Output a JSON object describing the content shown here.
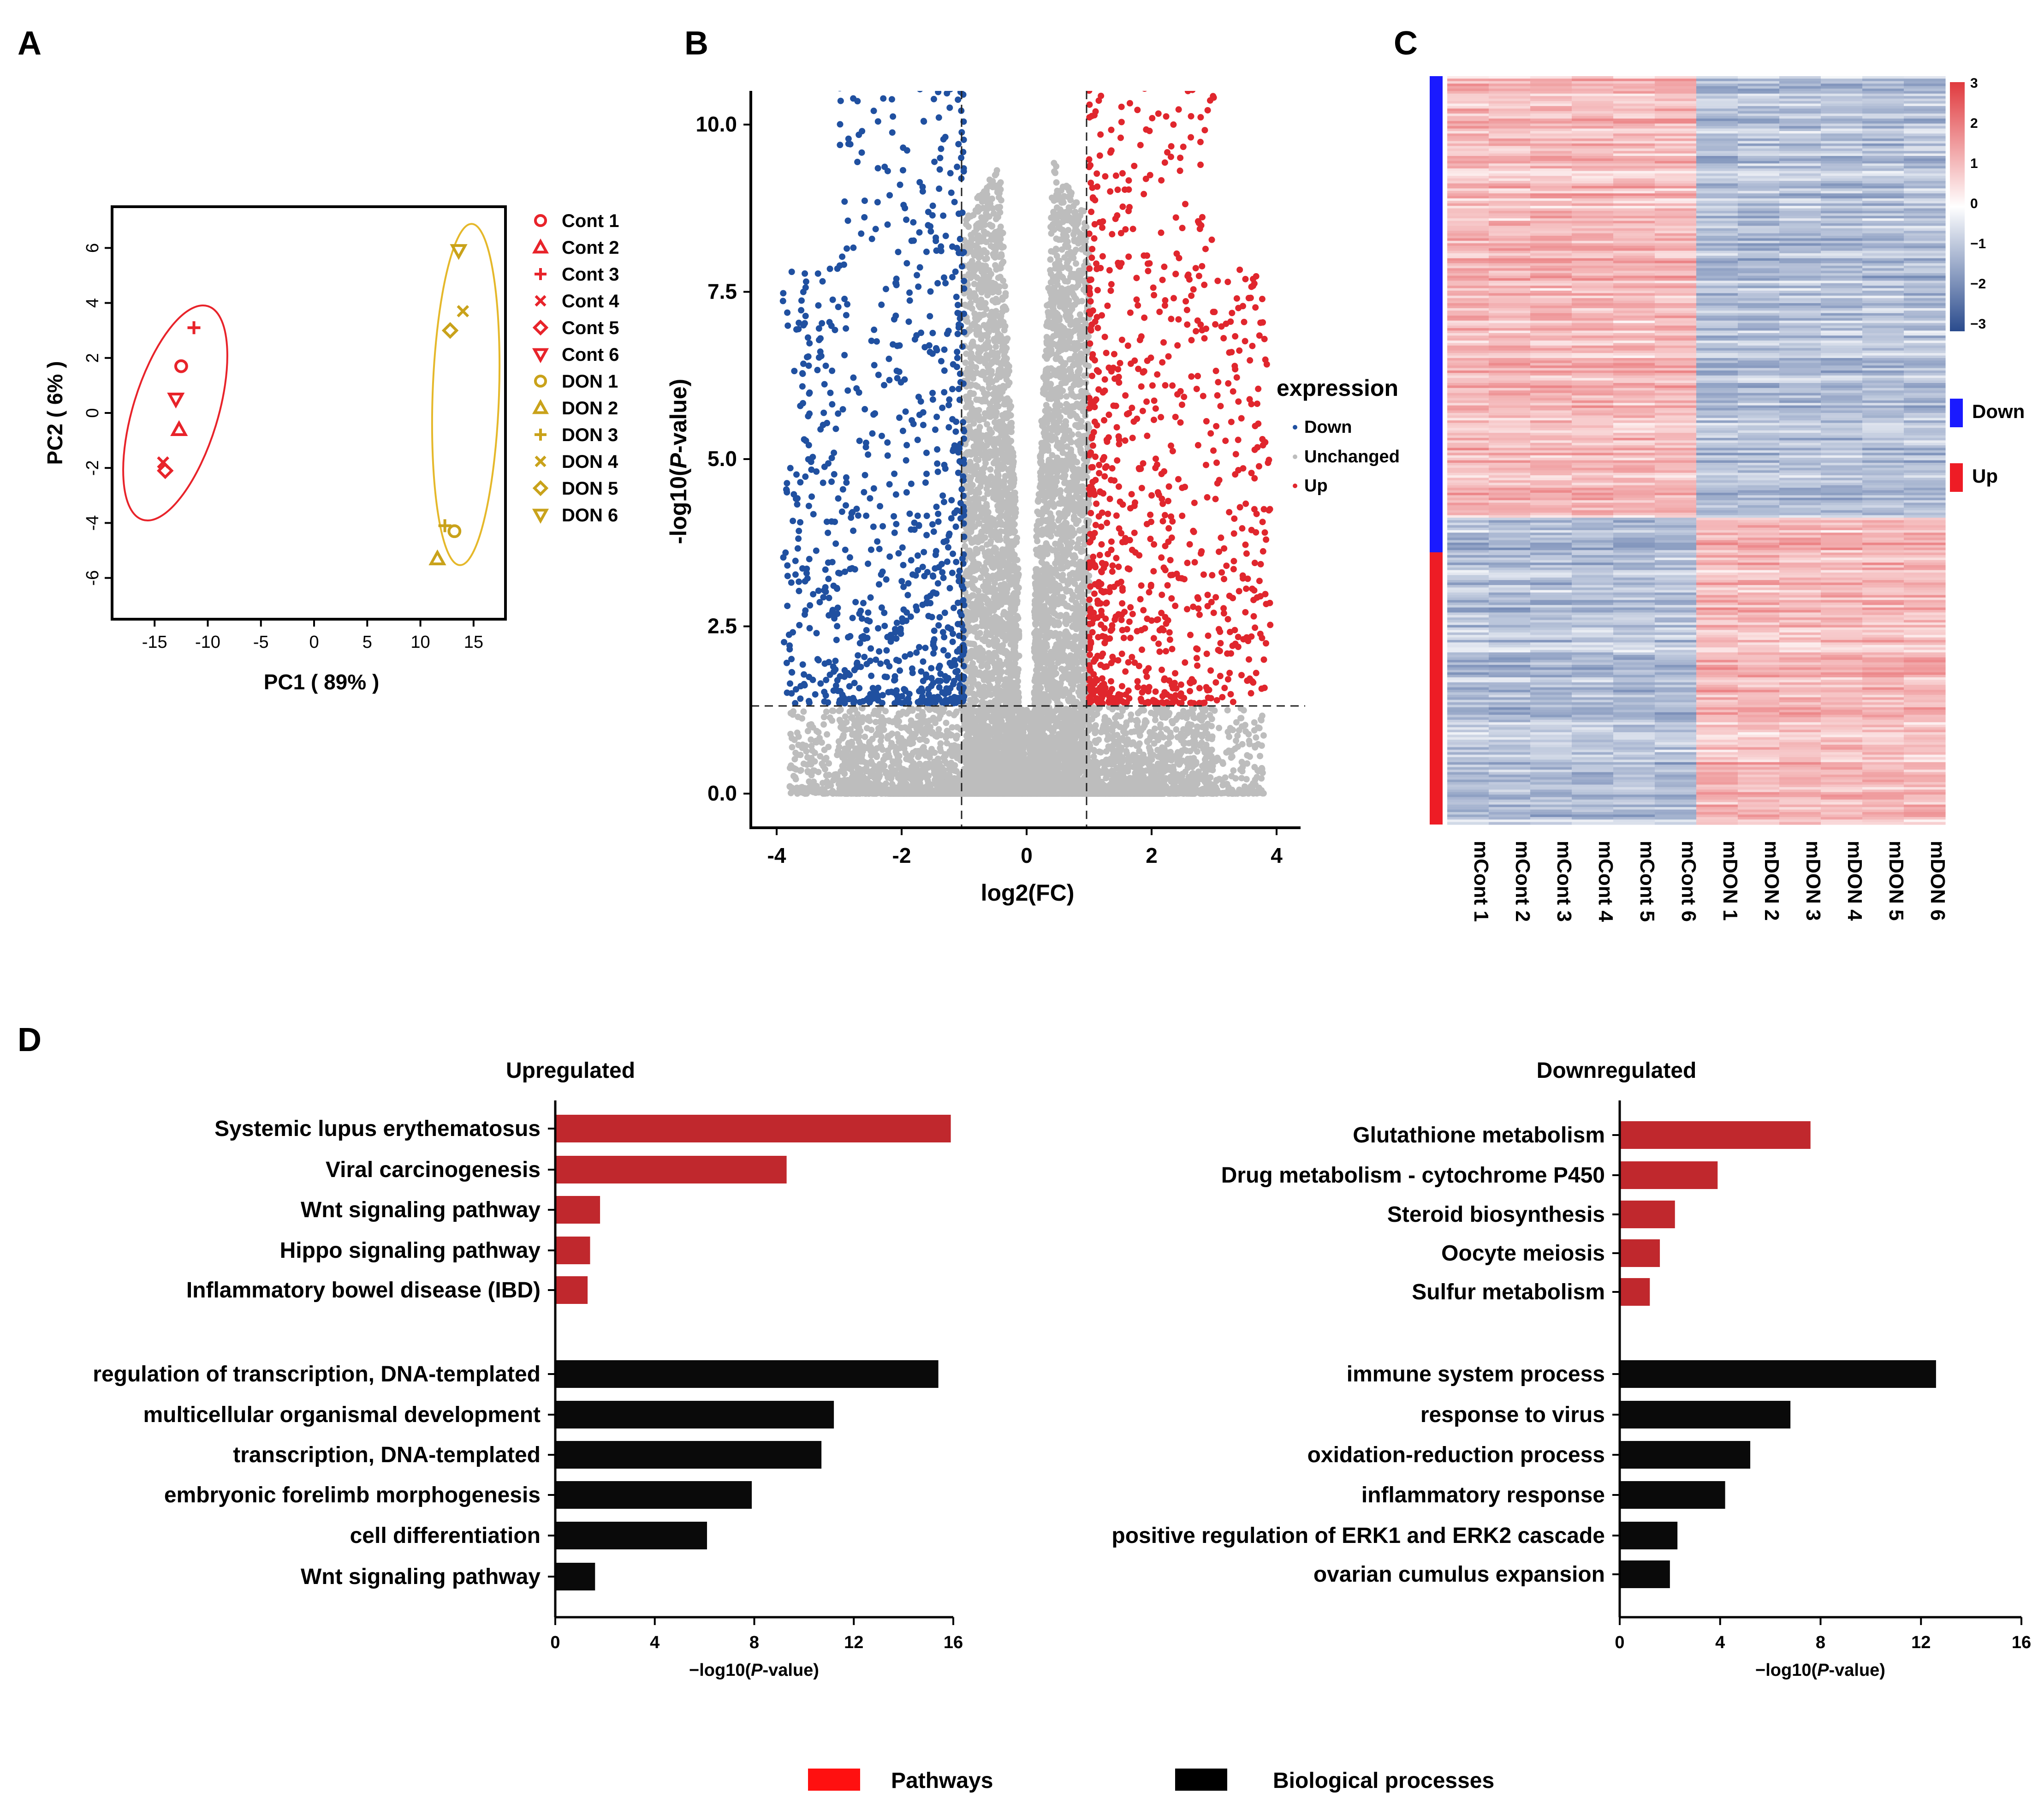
{
  "panels": {
    "a": "A",
    "b": "B",
    "c": "C",
    "d": "D"
  },
  "colors": {
    "cont": "#e8232a",
    "don": "#c9a21a",
    "down": "#2050a0",
    "up": "#e0262d",
    "unchanged": "#bdbdbd",
    "pathway": "#c0282d",
    "process": "#0a0a0a",
    "down_bar": "#1a1aff",
    "up_bar": "#ee1c25",
    "heat_red": "#e03a3e",
    "heat_blue": "#2a4b8d"
  },
  "legend_bottom": {
    "pathways": "Pathways",
    "processes": "Biological processes"
  },
  "chart_data": [
    {
      "type": "scatter",
      "id": "pca",
      "xlabel": "PC1 ( 89% )",
      "ylabel": "PC2 ( 6% )",
      "xlim": [
        -19,
        18
      ],
      "ylim": [
        -7.5,
        7.5
      ],
      "xticks": [
        -15,
        -10,
        -5,
        0,
        5,
        10,
        15
      ],
      "yticks": [
        -6,
        -4,
        -2,
        0,
        2,
        4,
        6
      ],
      "series": [
        {
          "name": "Cont 1",
          "group": "cont",
          "marker": "circle",
          "x": -12.5,
          "y": 1.7
        },
        {
          "name": "Cont 2",
          "group": "cont",
          "marker": "triangle",
          "x": -12.7,
          "y": -0.6
        },
        {
          "name": "Cont 3",
          "group": "cont",
          "marker": "plus",
          "x": -11.3,
          "y": 3.1
        },
        {
          "name": "Cont 4",
          "group": "cont",
          "marker": "x",
          "x": -14.2,
          "y": -1.8
        },
        {
          "name": "Cont 5",
          "group": "cont",
          "marker": "diamond",
          "x": -14.0,
          "y": -2.1
        },
        {
          "name": "Cont 6",
          "group": "cont",
          "marker": "tri-down",
          "x": -13.0,
          "y": 0.5
        },
        {
          "name": "DON 1",
          "group": "don",
          "marker": "circle",
          "x": 13.2,
          "y": -4.3
        },
        {
          "name": "DON 2",
          "group": "don",
          "marker": "triangle",
          "x": 11.6,
          "y": -5.3
        },
        {
          "name": "DON 3",
          "group": "don",
          "marker": "plus",
          "x": 12.3,
          "y": -4.1
        },
        {
          "name": "DON 4",
          "group": "don",
          "marker": "x",
          "x": 14.0,
          "y": 3.7
        },
        {
          "name": "DON 5",
          "group": "don",
          "marker": "diamond",
          "x": 12.8,
          "y": 3.0
        },
        {
          "name": "DON 6",
          "group": "don",
          "marker": "tri-down",
          "x": 13.6,
          "y": 5.9
        }
      ]
    },
    {
      "type": "scatter",
      "id": "volcano",
      "xlabel": "log2(FC)",
      "ylabel": "-log10(P-value)",
      "xlim": [
        -4.4,
        4.4
      ],
      "ylim": [
        -0.4,
        10.5
      ],
      "xticks": [
        -4,
        -2,
        0,
        2,
        4
      ],
      "yticks": [
        "0.0",
        "2.5",
        "5.0",
        "7.5",
        "10.0"
      ],
      "fc_threshold": 1,
      "p_threshold": 1.3,
      "legend_title": "expression",
      "categories": [
        "Down",
        "Unchanged",
        "Up"
      ],
      "approx_counts": {
        "Down": 850,
        "Unchanged": 9000,
        "Up": 850
      }
    },
    {
      "type": "heatmap",
      "id": "heatmap",
      "columns": [
        "mCont 1",
        "mCont 2",
        "mCont 3",
        "mCont 4",
        "mCont 5",
        "mCont 6",
        "mDON 1",
        "mDON 2",
        "mDON 3",
        "mDON 4",
        "mDON 5",
        "mDON 6"
      ],
      "row_groups": [
        {
          "name": "Down",
          "fraction": 0.59
        },
        {
          "name": "Up",
          "fraction": 0.41
        }
      ],
      "scale_ticks": [
        "3",
        "2",
        "1",
        "0",
        "−1",
        "−2",
        "−3"
      ],
      "scale_range": [
        -3,
        3
      ]
    },
    {
      "type": "bar",
      "id": "upregulated",
      "title": "Upregulated",
      "xlabel_pre": "−log10(",
      "xlabel_ital": "P",
      "xlabel_post": "-value)",
      "xlim": [
        0,
        16
      ],
      "xticks": [
        "0",
        "4",
        "8",
        "12",
        "16"
      ],
      "pathways": {
        "categories": [
          "Systemic lupus erythematosus",
          "Viral carcinogenesis",
          "Wnt signaling pathway",
          "Hippo signaling pathway",
          "Inflammatory bowel disease (IBD)"
        ],
        "values": [
          15.9,
          9.3,
          1.8,
          1.4,
          1.3
        ]
      },
      "processes": {
        "categories": [
          "regulation of transcription, DNA-templated",
          "multicellular organismal development",
          "transcription, DNA-templated",
          "embryonic forelimb morphogenesis",
          "cell differentiation",
          "Wnt signaling pathway"
        ],
        "values": [
          15.4,
          11.2,
          10.7,
          7.9,
          6.1,
          1.6
        ]
      }
    },
    {
      "type": "bar",
      "id": "downregulated",
      "title": "Downregulated",
      "xlabel_pre": "−log10(",
      "xlabel_ital": "P",
      "xlabel_post": "-value)",
      "xlim": [
        0,
        16
      ],
      "xticks": [
        "0",
        "4",
        "8",
        "12",
        "16"
      ],
      "pathways": {
        "categories": [
          "Glutathione metabolism",
          "Drug metabolism - cytochrome P450",
          "Steroid biosynthesis",
          "Oocyte meiosis",
          "Sulfur metabolism"
        ],
        "values": [
          7.6,
          3.9,
          2.2,
          1.6,
          1.2
        ]
      },
      "processes": {
        "categories": [
          "immune system process",
          "response to virus",
          "oxidation-reduction process",
          "inflammatory response",
          "positive regulation of ERK1 and ERK2 cascade",
          "ovarian cumulus expansion"
        ],
        "values": [
          12.6,
          6.8,
          5.2,
          4.2,
          2.3,
          2.0
        ]
      }
    }
  ]
}
